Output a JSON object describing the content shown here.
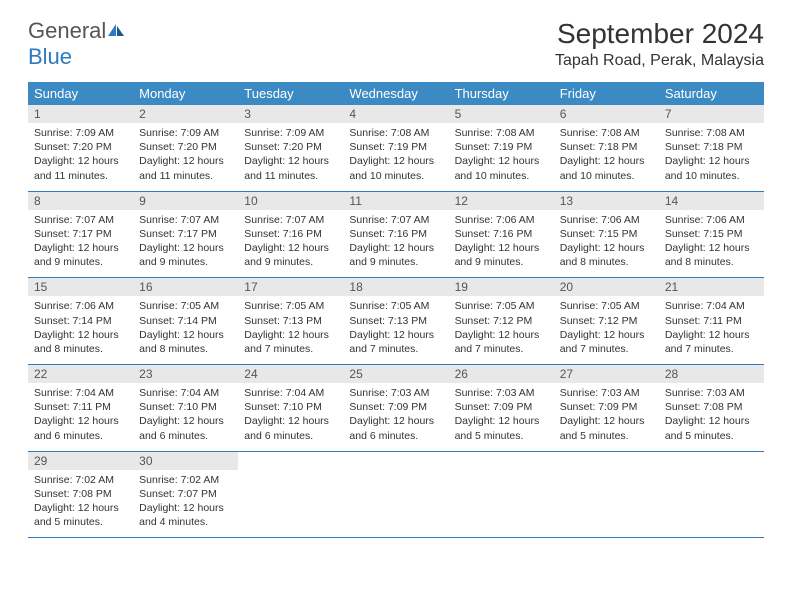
{
  "logo": {
    "text1": "General",
    "text2": "Blue"
  },
  "title": "September 2024",
  "location": "Tapah Road, Perak, Malaysia",
  "colors": {
    "header_bg": "#3b8ac4",
    "daynum_bg": "#e8e8e8",
    "border": "#2e7bc0",
    "text": "#333333",
    "logo_gray": "#555555",
    "logo_blue": "#2e7bc0"
  },
  "day_labels": [
    "Sunday",
    "Monday",
    "Tuesday",
    "Wednesday",
    "Thursday",
    "Friday",
    "Saturday"
  ],
  "weeks": [
    [
      {
        "n": "1",
        "sr": "Sunrise: 7:09 AM",
        "ss": "Sunset: 7:20 PM",
        "dl": "Daylight: 12 hours and 11 minutes."
      },
      {
        "n": "2",
        "sr": "Sunrise: 7:09 AM",
        "ss": "Sunset: 7:20 PM",
        "dl": "Daylight: 12 hours and 11 minutes."
      },
      {
        "n": "3",
        "sr": "Sunrise: 7:09 AM",
        "ss": "Sunset: 7:20 PM",
        "dl": "Daylight: 12 hours and 11 minutes."
      },
      {
        "n": "4",
        "sr": "Sunrise: 7:08 AM",
        "ss": "Sunset: 7:19 PM",
        "dl": "Daylight: 12 hours and 10 minutes."
      },
      {
        "n": "5",
        "sr": "Sunrise: 7:08 AM",
        "ss": "Sunset: 7:19 PM",
        "dl": "Daylight: 12 hours and 10 minutes."
      },
      {
        "n": "6",
        "sr": "Sunrise: 7:08 AM",
        "ss": "Sunset: 7:18 PM",
        "dl": "Daylight: 12 hours and 10 minutes."
      },
      {
        "n": "7",
        "sr": "Sunrise: 7:08 AM",
        "ss": "Sunset: 7:18 PM",
        "dl": "Daylight: 12 hours and 10 minutes."
      }
    ],
    [
      {
        "n": "8",
        "sr": "Sunrise: 7:07 AM",
        "ss": "Sunset: 7:17 PM",
        "dl": "Daylight: 12 hours and 9 minutes."
      },
      {
        "n": "9",
        "sr": "Sunrise: 7:07 AM",
        "ss": "Sunset: 7:17 PM",
        "dl": "Daylight: 12 hours and 9 minutes."
      },
      {
        "n": "10",
        "sr": "Sunrise: 7:07 AM",
        "ss": "Sunset: 7:16 PM",
        "dl": "Daylight: 12 hours and 9 minutes."
      },
      {
        "n": "11",
        "sr": "Sunrise: 7:07 AM",
        "ss": "Sunset: 7:16 PM",
        "dl": "Daylight: 12 hours and 9 minutes."
      },
      {
        "n": "12",
        "sr": "Sunrise: 7:06 AM",
        "ss": "Sunset: 7:16 PM",
        "dl": "Daylight: 12 hours and 9 minutes."
      },
      {
        "n": "13",
        "sr": "Sunrise: 7:06 AM",
        "ss": "Sunset: 7:15 PM",
        "dl": "Daylight: 12 hours and 8 minutes."
      },
      {
        "n": "14",
        "sr": "Sunrise: 7:06 AM",
        "ss": "Sunset: 7:15 PM",
        "dl": "Daylight: 12 hours and 8 minutes."
      }
    ],
    [
      {
        "n": "15",
        "sr": "Sunrise: 7:06 AM",
        "ss": "Sunset: 7:14 PM",
        "dl": "Daylight: 12 hours and 8 minutes."
      },
      {
        "n": "16",
        "sr": "Sunrise: 7:05 AM",
        "ss": "Sunset: 7:14 PM",
        "dl": "Daylight: 12 hours and 8 minutes."
      },
      {
        "n": "17",
        "sr": "Sunrise: 7:05 AM",
        "ss": "Sunset: 7:13 PM",
        "dl": "Daylight: 12 hours and 7 minutes."
      },
      {
        "n": "18",
        "sr": "Sunrise: 7:05 AM",
        "ss": "Sunset: 7:13 PM",
        "dl": "Daylight: 12 hours and 7 minutes."
      },
      {
        "n": "19",
        "sr": "Sunrise: 7:05 AM",
        "ss": "Sunset: 7:12 PM",
        "dl": "Daylight: 12 hours and 7 minutes."
      },
      {
        "n": "20",
        "sr": "Sunrise: 7:05 AM",
        "ss": "Sunset: 7:12 PM",
        "dl": "Daylight: 12 hours and 7 minutes."
      },
      {
        "n": "21",
        "sr": "Sunrise: 7:04 AM",
        "ss": "Sunset: 7:11 PM",
        "dl": "Daylight: 12 hours and 7 minutes."
      }
    ],
    [
      {
        "n": "22",
        "sr": "Sunrise: 7:04 AM",
        "ss": "Sunset: 7:11 PM",
        "dl": "Daylight: 12 hours and 6 minutes."
      },
      {
        "n": "23",
        "sr": "Sunrise: 7:04 AM",
        "ss": "Sunset: 7:10 PM",
        "dl": "Daylight: 12 hours and 6 minutes."
      },
      {
        "n": "24",
        "sr": "Sunrise: 7:04 AM",
        "ss": "Sunset: 7:10 PM",
        "dl": "Daylight: 12 hours and 6 minutes."
      },
      {
        "n": "25",
        "sr": "Sunrise: 7:03 AM",
        "ss": "Sunset: 7:09 PM",
        "dl": "Daylight: 12 hours and 6 minutes."
      },
      {
        "n": "26",
        "sr": "Sunrise: 7:03 AM",
        "ss": "Sunset: 7:09 PM",
        "dl": "Daylight: 12 hours and 5 minutes."
      },
      {
        "n": "27",
        "sr": "Sunrise: 7:03 AM",
        "ss": "Sunset: 7:09 PM",
        "dl": "Daylight: 12 hours and 5 minutes."
      },
      {
        "n": "28",
        "sr": "Sunrise: 7:03 AM",
        "ss": "Sunset: 7:08 PM",
        "dl": "Daylight: 12 hours and 5 minutes."
      }
    ],
    [
      {
        "n": "29",
        "sr": "Sunrise: 7:02 AM",
        "ss": "Sunset: 7:08 PM",
        "dl": "Daylight: 12 hours and 5 minutes."
      },
      {
        "n": "30",
        "sr": "Sunrise: 7:02 AM",
        "ss": "Sunset: 7:07 PM",
        "dl": "Daylight: 12 hours and 4 minutes."
      },
      null,
      null,
      null,
      null,
      null
    ]
  ]
}
